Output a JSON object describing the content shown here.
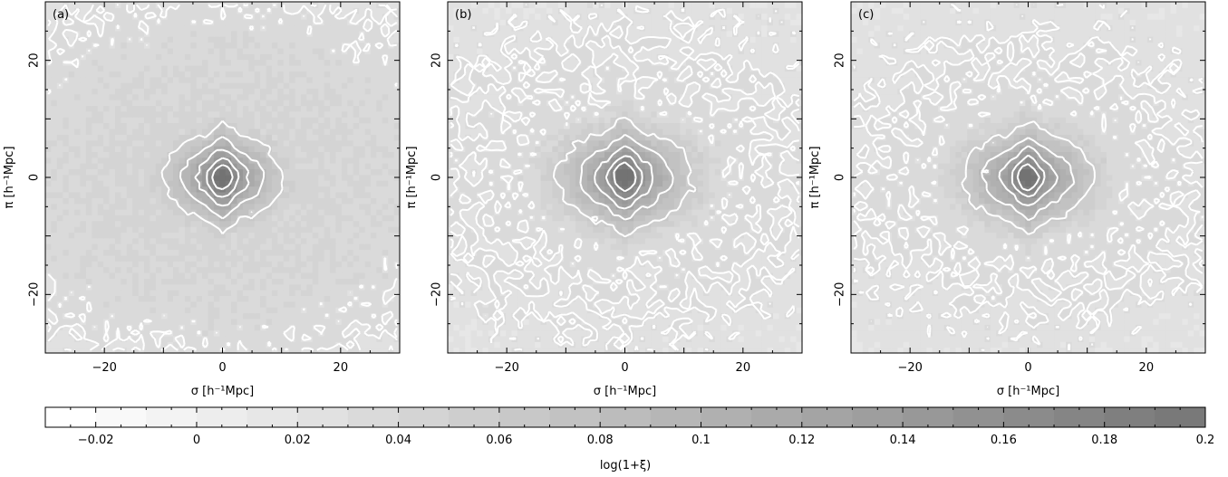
{
  "chart_data": {
    "type": "heatmap",
    "panels": [
      {
        "label": "(a)",
        "xlabel": "σ   [h⁻¹Mpc]",
        "ylabel": "π   [h⁻¹Mpc]",
        "xlim": [
          -30,
          30
        ],
        "ylim": [
          -30,
          30
        ],
        "xticks": [
          -20,
          0,
          20
        ],
        "yticks": [
          -20,
          0,
          20
        ],
        "xtick_labels": [
          "−20",
          "0",
          "20"
        ],
        "ytick_labels": [
          "−20",
          "0",
          "20"
        ],
        "shape": {
          "sx": 11.0,
          "sy": 8.2,
          "finger": 0.9,
          "plateau": 0.055,
          "noise_amp": 0.006
        },
        "contour_levels": [
          0.03,
          0.06,
          0.09,
          0.12,
          0.15,
          0.18
        ]
      },
      {
        "label": "(b)",
        "xlabel": "σ   [h⁻¹Mpc]",
        "ylabel": "π   [h⁻¹Mpc]",
        "xlim": [
          -30,
          30
        ],
        "ylim": [
          -30,
          30
        ],
        "xticks": [
          -20,
          0,
          20
        ],
        "yticks": [
          -20,
          0,
          20
        ],
        "xtick_labels": [
          "−20",
          "0",
          "20"
        ],
        "ytick_labels": [
          "−20",
          "0",
          "20"
        ],
        "shape": {
          "sx": 12.5,
          "sy": 8.8,
          "finger": 1.0,
          "plateau": 0.045,
          "noise_amp": 0.007
        },
        "contour_levels": [
          0.03,
          0.06,
          0.09,
          0.12,
          0.15,
          0.18
        ]
      },
      {
        "label": "(c)",
        "xlabel": "σ   [h⁻¹Mpc]",
        "ylabel": "π   [h⁻¹Mpc]",
        "xlim": [
          -30,
          30
        ],
        "ylim": [
          -30,
          30
        ],
        "xticks": [
          -20,
          0,
          20
        ],
        "yticks": [
          -20,
          0,
          20
        ],
        "xtick_labels": [
          "−20",
          "0",
          "20"
        ],
        "ytick_labels": [
          "−20",
          "0",
          "20"
        ],
        "shape": {
          "sx": 12.0,
          "sy": 8.5,
          "finger": 0.85,
          "plateau": 0.045,
          "noise_amp": 0.006
        },
        "contour_levels": [
          0.03,
          0.06,
          0.09,
          0.12,
          0.15,
          0.18
        ]
      }
    ],
    "colorbar": {
      "label": "log(1+ξ)",
      "range": [
        -0.03,
        0.2
      ],
      "ticks": [
        -0.02,
        0,
        0.02,
        0.04,
        0.06,
        0.08,
        0.1,
        0.12,
        0.14,
        0.16,
        0.18,
        0.2
      ],
      "tick_labels": [
        "−0.02",
        "0",
        "0.02",
        "0.04",
        "0.06",
        "0.08",
        "0.1",
        "0.12",
        "0.14",
        "0.16",
        "0.18",
        "0.2"
      ],
      "minor_step": 0.005,
      "band_step": 0.01,
      "gray_light": "#ffffff",
      "gray_dark": "#737373"
    },
    "contour_color": "#ffffff"
  }
}
